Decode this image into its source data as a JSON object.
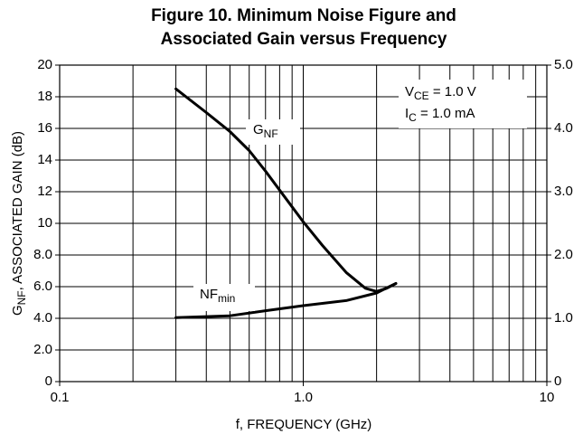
{
  "chart_data": {
    "type": "line",
    "title_lines": [
      "Figure 10. Minimum Noise Figure and",
      "Associated Gain versus Frequency"
    ],
    "x_label": "f, FREQUENCY (GHz)",
    "y_label": {
      "main": "G",
      "sub": "NF",
      "rest": ", ASSOCIATED GAIN (dB)"
    },
    "xscale": "log",
    "xlim": [
      0.1,
      10
    ],
    "xticks": [
      0.1,
      {
        "value": 1,
        "label": "1.0"
      },
      10
    ],
    "x_minor_grid": [
      0.2,
      0.3,
      0.4,
      0.5,
      0.6,
      0.7,
      0.8,
      0.9,
      2,
      3,
      4,
      5,
      6,
      7,
      8,
      9
    ],
    "ylim": [
      0,
      20
    ],
    "yticks": [
      0,
      {
        "value": 2,
        "label": "2.0"
      },
      {
        "value": 4,
        "label": "4.0"
      },
      {
        "value": 6,
        "label": "6.0"
      },
      {
        "value": 8,
        "label": "8.0"
      },
      10,
      12,
      14,
      16,
      18,
      20
    ],
    "y2lim": [
      0,
      5
    ],
    "y2ticks": [
      0,
      {
        "value": 1,
        "label": "1.0"
      },
      {
        "value": 2,
        "label": "2.0"
      },
      {
        "value": 3,
        "label": "3.0"
      },
      {
        "value": 4,
        "label": "4.0"
      },
      {
        "value": 5,
        "label": "5.0"
      }
    ],
    "grid": true,
    "series": [
      {
        "label": {
          "main": "G",
          "sub": "NF"
        },
        "color": "#000000",
        "x": [
          0.3,
          0.4,
          0.5,
          0.6,
          0.7,
          0.8,
          1.0,
          1.2,
          1.5,
          1.8,
          2.0,
          2.2,
          2.4
        ],
        "values": [
          18.5,
          17.0,
          15.8,
          14.6,
          13.3,
          12.1,
          10.1,
          8.6,
          6.9,
          5.9,
          5.7,
          5.9,
          6.2
        ]
      },
      {
        "label": {
          "main": "NF",
          "sub": "min"
        },
        "color": "#000000",
        "axis": "y2",
        "x": [
          0.3,
          0.5,
          0.7,
          1.0,
          1.5,
          2.0,
          2.2,
          2.4
        ],
        "values": [
          1.01,
          1.04,
          1.12,
          1.2,
          1.28,
          1.4,
          1.48,
          1.55
        ]
      }
    ],
    "annotations": [
      {
        "main": "V",
        "sub": "CE",
        "rest": " = 1.0 V"
      },
      {
        "main": "I",
        "sub": "C",
        "rest": " = 1.0 mA"
      }
    ]
  }
}
